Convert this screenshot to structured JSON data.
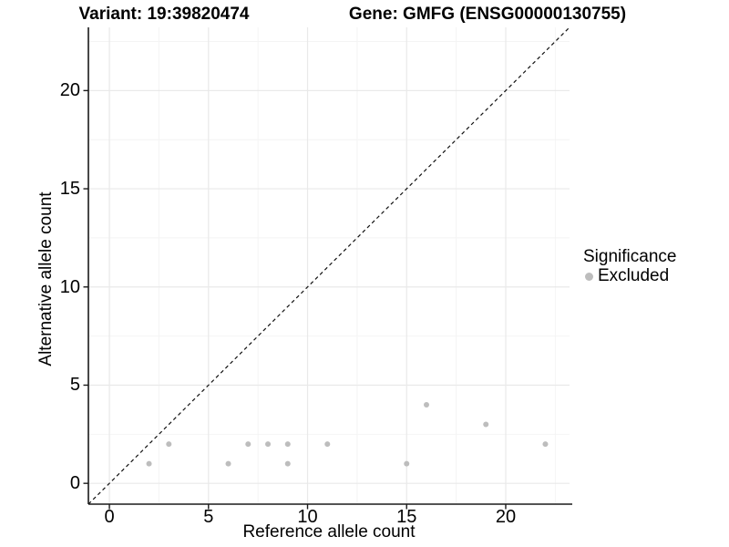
{
  "titles": {
    "left": "Variant: 19:39820474",
    "right": "Gene: GMFG (ENSG00000130755)"
  },
  "legend": {
    "title": "Significance",
    "items": [
      {
        "label": "Excluded",
        "color": "#BDBDBD"
      }
    ],
    "position": "right"
  },
  "colors": {
    "background": "#ffffff",
    "point": "#BDBDBD",
    "grid_major": "#E9E9E9",
    "grid_minor": "#F4F4F4",
    "axis_line": "#1a1a1a",
    "identity_line": "#111111",
    "text": "#000000"
  },
  "chart_data": {
    "type": "scatter",
    "title_left": "Variant: 19:39820474",
    "title_right": "Gene: GMFG (ENSG00000130755)",
    "xlabel": "Reference allele count",
    "ylabel": "Alternative allele count",
    "xlim": [
      -1.06,
      23.22
    ],
    "ylim": [
      -1.06,
      23.22
    ],
    "x_ticks": [
      0,
      5,
      10,
      15,
      20
    ],
    "y_ticks": [
      0,
      5,
      10,
      15,
      20
    ],
    "x_minor_ticks": [
      2.5,
      7.5,
      12.5,
      17.5,
      22.5
    ],
    "y_minor_ticks": [
      2.5,
      7.5,
      12.5,
      17.5,
      22.5
    ],
    "grid": true,
    "legend_position": "right",
    "series": [
      {
        "name": "Excluded",
        "color": "#BDBDBD",
        "points": [
          [
            2,
            1
          ],
          [
            3,
            2
          ],
          [
            6,
            1
          ],
          [
            7,
            2
          ],
          [
            8,
            2
          ],
          [
            9,
            1
          ],
          [
            9,
            2
          ],
          [
            11,
            2
          ],
          [
            15,
            1
          ],
          [
            16,
            4
          ],
          [
            19,
            3
          ],
          [
            22,
            2
          ]
        ]
      }
    ],
    "identity_line": {
      "type": "y=x",
      "style": "dashed"
    }
  }
}
